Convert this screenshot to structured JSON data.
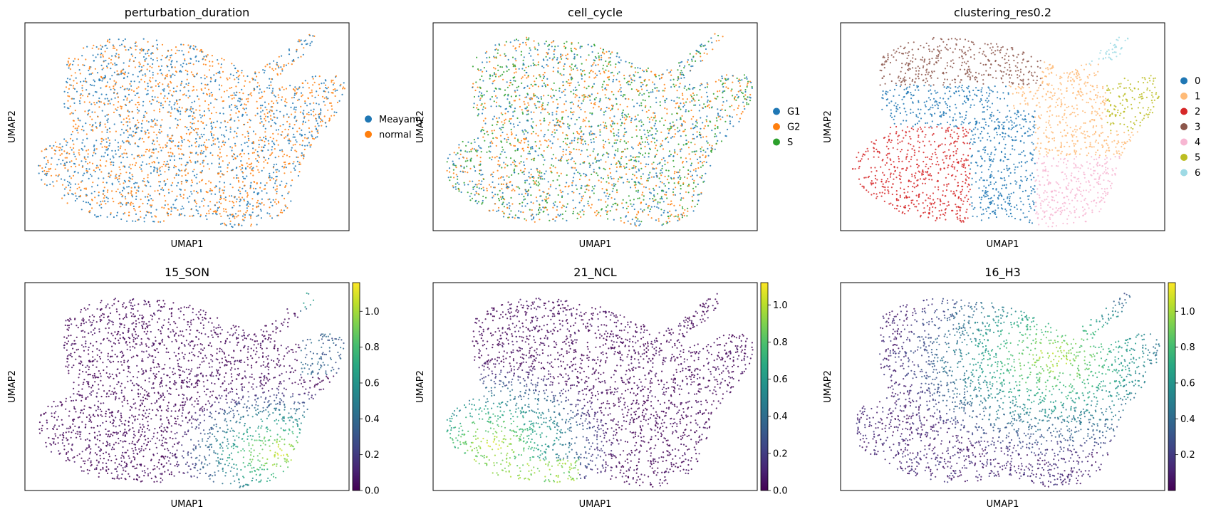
{
  "chart_data": [
    {
      "type": "scatter",
      "title": "perturbation_duration",
      "xlabel": "UMAP1",
      "ylabel": "UMAP2",
      "color_mode": "categorical",
      "legend": {
        "placement": "right",
        "entries": [
          {
            "label": "Meayamy",
            "color": "#1f77b4"
          },
          {
            "label": "normal",
            "color": "#ff7f0e"
          }
        ]
      }
    },
    {
      "type": "scatter",
      "title": "cell_cycle",
      "xlabel": "UMAP1",
      "ylabel": "UMAP2",
      "color_mode": "categorical",
      "legend": {
        "placement": "right",
        "entries": [
          {
            "label": "G1",
            "color": "#1f77b4"
          },
          {
            "label": "G2",
            "color": "#ff7f0e"
          },
          {
            "label": "S",
            "color": "#2ca02c"
          }
        ]
      }
    },
    {
      "type": "scatter",
      "title": "clustering_res0.2",
      "xlabel": "UMAP1",
      "ylabel": "UMAP2",
      "color_mode": "categorical",
      "legend": {
        "placement": "right",
        "entries": [
          {
            "label": "0",
            "color": "#1f77b4"
          },
          {
            "label": "1",
            "color": "#ffbb78"
          },
          {
            "label": "2",
            "color": "#d62728"
          },
          {
            "label": "3",
            "color": "#8c564b"
          },
          {
            "label": "4",
            "color": "#f7b6d2"
          },
          {
            "label": "5",
            "color": "#bcbd22"
          },
          {
            "label": "6",
            "color": "#9edae5"
          }
        ]
      }
    },
    {
      "type": "scatter",
      "title": "15_SON",
      "xlabel": "UMAP1",
      "ylabel": "UMAP2",
      "color_mode": "continuous",
      "colormap": "viridis",
      "colorbar": {
        "range": [
          0.0,
          1.16
        ],
        "ticks": [
          0.0,
          0.2,
          0.4,
          0.6,
          0.8,
          1.0
        ],
        "tick_labels": [
          "0.0",
          "0.2",
          "0.4",
          "0.6",
          "0.8",
          "1.0"
        ]
      }
    },
    {
      "type": "scatter",
      "title": "21_NCL",
      "xlabel": "UMAP1",
      "ylabel": "UMAP2",
      "color_mode": "continuous",
      "colormap": "viridis",
      "colorbar": {
        "range": [
          0.0,
          1.12
        ],
        "ticks": [
          0.0,
          0.2,
          0.4,
          0.6,
          0.8,
          1.0
        ],
        "tick_labels": [
          "0.0",
          "0.2",
          "0.4",
          "0.6",
          "0.8",
          "1.0"
        ]
      }
    },
    {
      "type": "scatter",
      "title": "16_H3",
      "xlabel": "UMAP1",
      "ylabel": "UMAP2",
      "color_mode": "continuous",
      "colormap": "viridis",
      "colorbar": {
        "range": [
          0.0,
          1.16
        ],
        "ticks": [
          0.2,
          0.4,
          0.6,
          0.8,
          1.0
        ],
        "tick_labels": [
          "0.2",
          "0.4",
          "0.6",
          "0.8",
          "1.0"
        ]
      }
    }
  ]
}
